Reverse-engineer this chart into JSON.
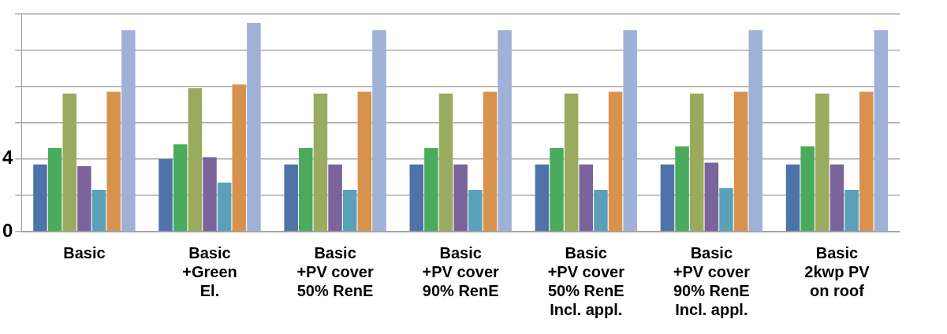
{
  "chart_data": {
    "type": "bar",
    "categories": [
      "Basic",
      "Basic\n+Green\nEl.",
      "Basic\n+PV cover\n50% RenE",
      "Basic\n+PV cover\n90% RenE",
      "Basic\n+PV cover\n50% RenE\nIncl. appl.",
      "Basic\n+PV cover\n90% RenE\nIncl. appl.",
      "Basic\n2kwp PV\non roof"
    ],
    "series": [
      {
        "color": "#4f73a8",
        "values": [
          3.7,
          4.0,
          3.7,
          3.7,
          3.7,
          3.7,
          3.7
        ]
      },
      {
        "color": "#4aaa5e",
        "values": [
          4.6,
          4.8,
          4.6,
          4.6,
          4.6,
          4.7,
          4.7
        ]
      },
      {
        "color": "#9aab5f",
        "values": [
          7.6,
          7.9,
          7.6,
          7.6,
          7.6,
          7.6,
          7.6
        ]
      },
      {
        "color": "#7a649b",
        "values": [
          3.6,
          4.1,
          3.7,
          3.7,
          3.7,
          3.8,
          3.7
        ]
      },
      {
        "color": "#59a0b8",
        "values": [
          2.3,
          2.7,
          2.3,
          2.3,
          2.3,
          2.4,
          2.3
        ]
      },
      {
        "color": "#d8924e",
        "values": [
          7.7,
          8.1,
          7.7,
          7.7,
          7.7,
          7.7,
          7.7
        ]
      },
      {
        "color": "#9fb1d6",
        "values": [
          11.1,
          11.5,
          11.1,
          11.1,
          11.1,
          11.1,
          11.1
        ]
      }
    ],
    "ylim": [
      0,
      12
    ],
    "yticks": [
      0,
      {
        "value": 2,
        "label": null
      },
      4,
      {
        "value": 6,
        "label": null
      },
      {
        "value": 8,
        "label": null
      },
      {
        "value": 10,
        "label": null
      },
      {
        "value": 12,
        "label": null
      }
    ],
    "grid": "y",
    "legend": false
  }
}
